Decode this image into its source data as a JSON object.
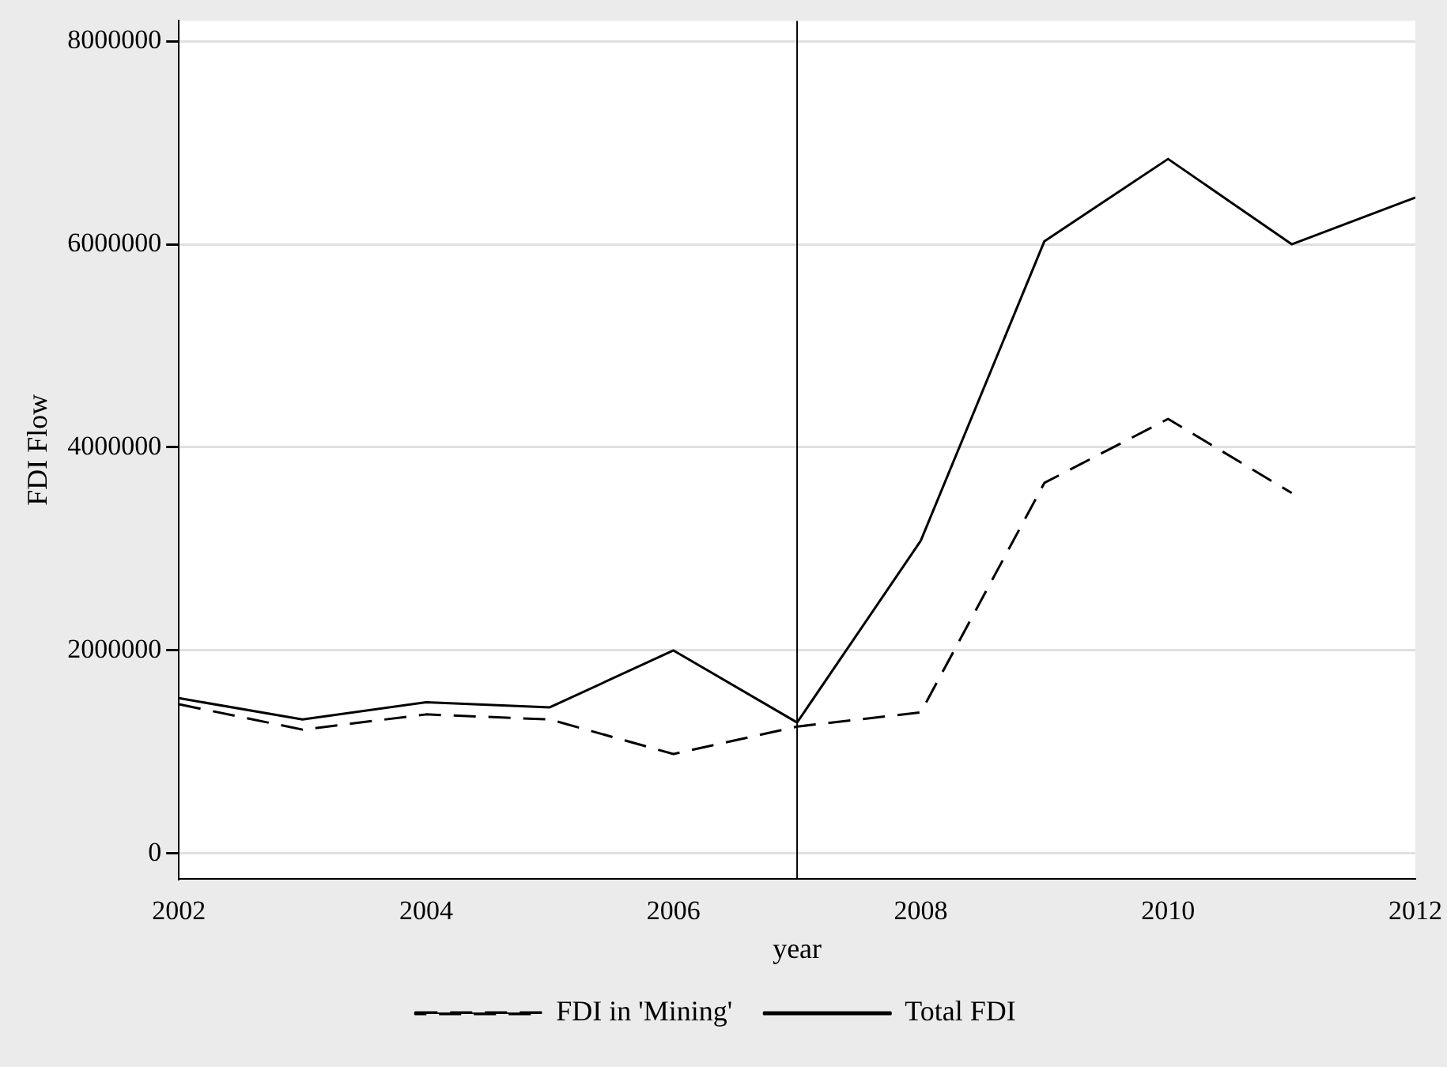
{
  "chart_data": {
    "type": "line",
    "xlabel": "year",
    "ylabel": "FDI Flow",
    "x": [
      2002,
      2003,
      2004,
      2005,
      2006,
      2007,
      2008,
      2009,
      2010,
      2011,
      2012
    ],
    "series": [
      {
        "name": "FDI in 'Mining'",
        "color": "#000000",
        "line_style": "dashed",
        "values": [
          1470000,
          1220000,
          1370000,
          1320000,
          980000,
          1250000,
          1390000,
          3650000,
          4280000,
          3550000,
          null
        ]
      },
      {
        "name": "Total FDI",
        "color": "#000000",
        "line_style": "solid",
        "values": [
          1530000,
          1320000,
          1490000,
          1440000,
          2000000,
          1290000,
          3080000,
          6030000,
          6840000,
          6000000,
          6460000
        ]
      }
    ],
    "xlim": [
      2002,
      2012
    ],
    "xticks": [
      2002,
      2004,
      2006,
      2008,
      2010,
      2012
    ],
    "ylim": [
      -250000,
      8200000
    ],
    "yticks": [
      0,
      2000000,
      4000000,
      6000000,
      8000000
    ],
    "grid": "y",
    "legend": "bottom",
    "marker": "none",
    "ref_lines": [
      {
        "axis": "x",
        "value": 2007,
        "color": "#000000"
      }
    ]
  }
}
